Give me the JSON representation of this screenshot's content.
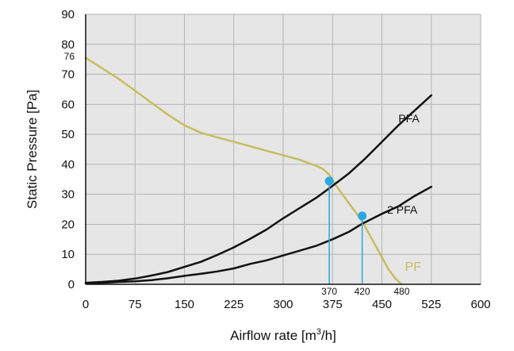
{
  "chart_data": {
    "type": "line",
    "xlabel": "Airflow rate [m",
    "xlabel_sup": "3",
    "xlabel_tail": "/h]",
    "ylabel": "Static Pressure [Pa]",
    "xlim": [
      0,
      600
    ],
    "ylim": [
      0,
      90
    ],
    "grid": true,
    "x_ticks": [
      0,
      75,
      150,
      225,
      300,
      375,
      450,
      525,
      600
    ],
    "y_ticks": [
      0,
      10,
      20,
      30,
      40,
      50,
      60,
      70,
      80,
      90
    ],
    "extra_y_tick": 76,
    "series": [
      {
        "name": "PF",
        "color": "#c8bd5e",
        "x": [
          0,
          25,
          50,
          75,
          100,
          125,
          150,
          175,
          200,
          225,
          250,
          275,
          300,
          325,
          350,
          360,
          370,
          380,
          390,
          400,
          410,
          420,
          430,
          440,
          450,
          460,
          470,
          480
        ],
        "y": [
          75.5,
          72,
          68.5,
          64.5,
          60.5,
          56.5,
          53,
          50.5,
          49,
          47.5,
          46,
          44.5,
          43,
          41.5,
          39.5,
          38.5,
          36.5,
          33,
          30,
          27,
          24,
          21,
          17,
          13,
          9,
          5,
          2,
          0
        ]
      },
      {
        "name": "PFA",
        "color": "#111111",
        "x": [
          0,
          25,
          50,
          75,
          100,
          125,
          150,
          175,
          200,
          225,
          250,
          275,
          300,
          325,
          350,
          370,
          400,
          425,
          450,
          475,
          500,
          525
        ],
        "y": [
          0.5,
          0.8,
          1.2,
          1.9,
          2.9,
          4.1,
          5.8,
          7.5,
          9.8,
          12.3,
          15.2,
          18.3,
          22,
          25.4,
          28.8,
          32,
          37,
          42,
          47.5,
          53,
          58,
          63
        ]
      },
      {
        "name": "2 PFA",
        "color": "#111111",
        "x": [
          0,
          25,
          50,
          75,
          100,
          125,
          150,
          175,
          200,
          225,
          250,
          275,
          300,
          325,
          350,
          375,
          400,
          420,
          450,
          475,
          500,
          525
        ],
        "y": [
          0.3,
          0.5,
          0.8,
          1,
          1.4,
          2,
          2.8,
          3.5,
          4.3,
          5.3,
          6.8,
          8,
          9.6,
          11.2,
          12.8,
          15,
          17.5,
          20.2,
          23.5,
          26,
          29.5,
          32.5
        ]
      }
    ],
    "operating_points": [
      {
        "x": 370,
        "y": 34.4,
        "label": "370",
        "color": "#2aa8e0"
      },
      {
        "x": 420,
        "y": 22.8,
        "label": "420",
        "color": "#2aa8e0"
      }
    ],
    "max_flow_label": {
      "x": 480,
      "label": "480"
    },
    "series_labels": [
      {
        "text": "PFA",
        "x": 475,
        "y": 54
      },
      {
        "text": "2 PFA",
        "x": 458,
        "y": 23.5
      },
      {
        "text": "PF",
        "x": 485,
        "y": 4.5
      }
    ]
  }
}
